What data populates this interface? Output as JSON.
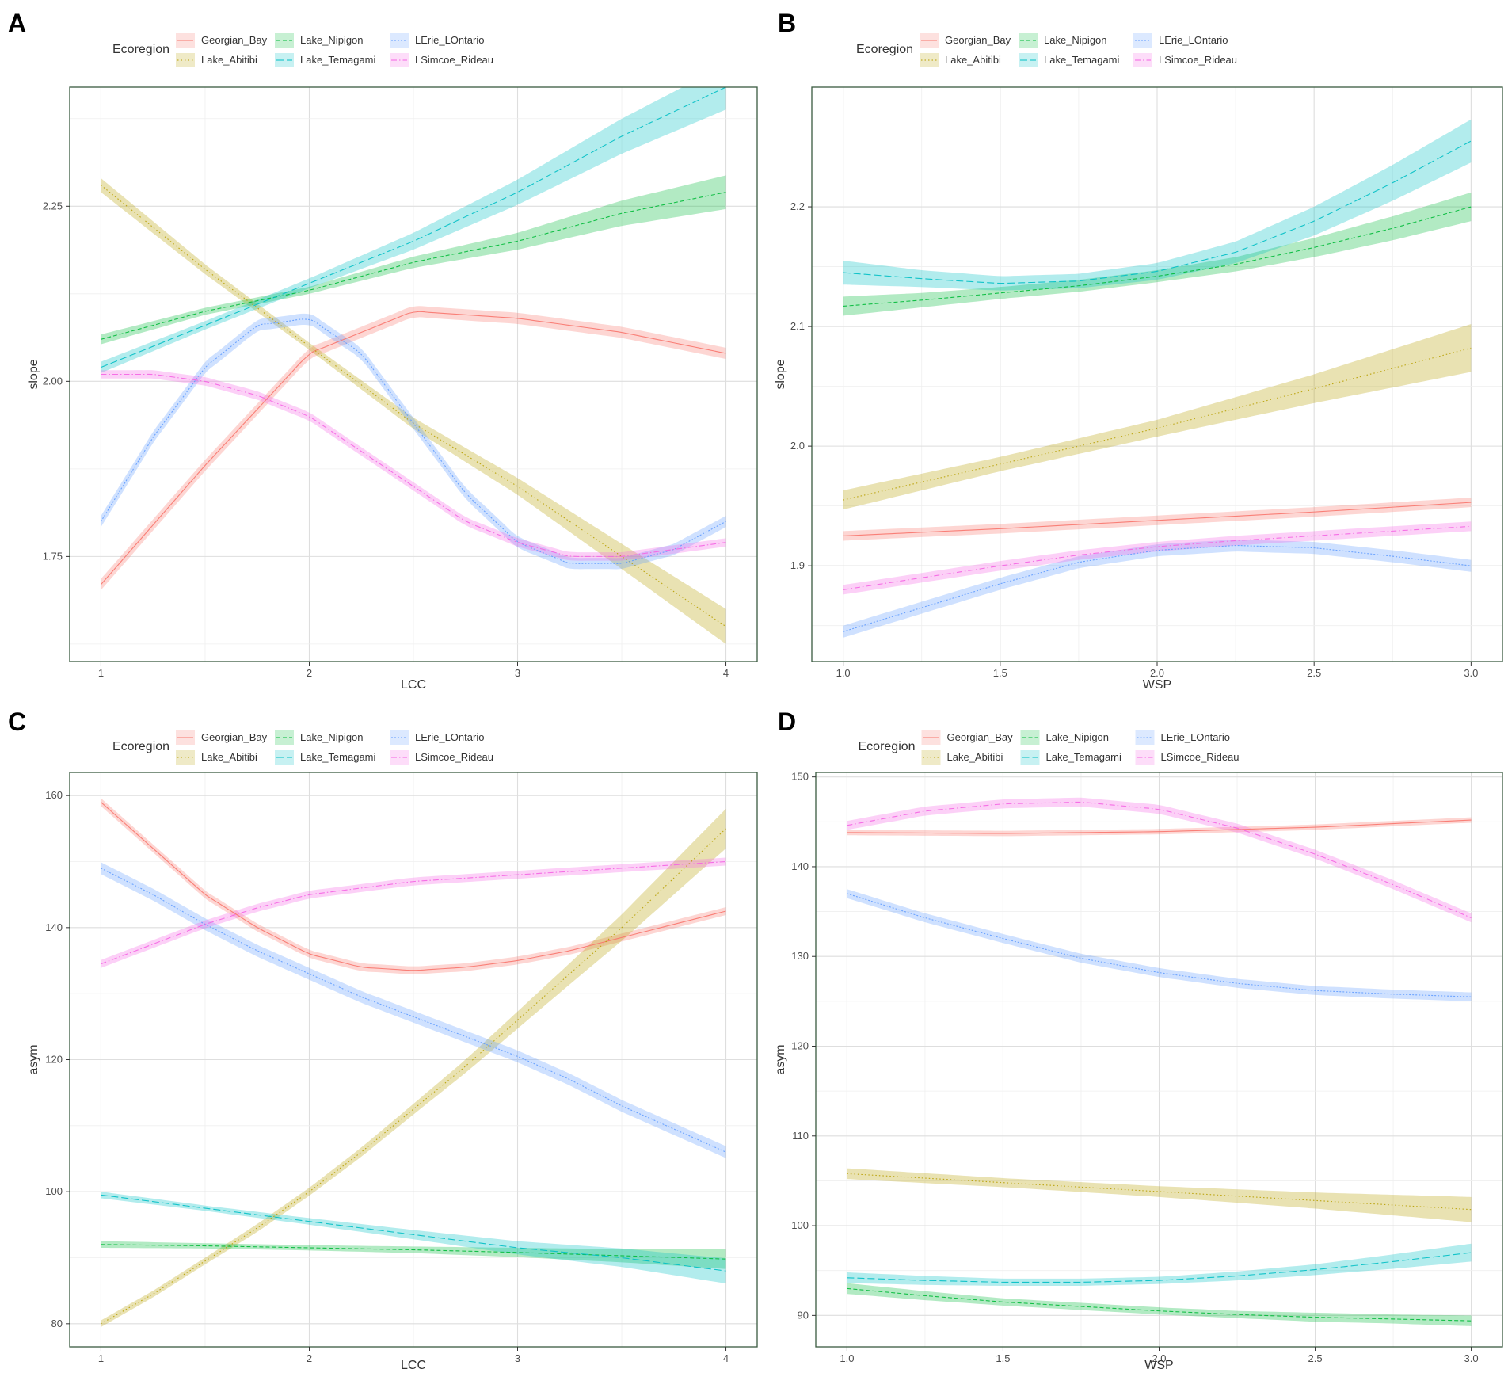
{
  "figure_caption": "",
  "colors": {
    "Georgian_Bay": "#F8766D",
    "Lake_Abitibi": "#B79F00",
    "Lake_Nipigon": "#00BA38",
    "Lake_Temagami": "#00BFC4",
    "LErie_LOntario": "#619CFF",
    "LSimcoe_Rideau": "#F564E3",
    "panel_border": "#3a5a40",
    "grid": "#e3e3e3"
  },
  "chart_data": [
    {
      "panel": "A",
      "type": "line",
      "xlabel": "LCC",
      "ylabel": "slope",
      "xlim": [
        0.85,
        4.15
      ],
      "ylim": [
        1.6,
        2.42
      ],
      "xticks": [
        1,
        2,
        3,
        4
      ],
      "xtick_labels": [
        "1",
        "2",
        "3",
        "4"
      ],
      "yticks": [
        1.75,
        2.0,
        2.25
      ],
      "ytick_labels": [
        "1.75",
        "2.00",
        "2.25"
      ],
      "legend_title": "Ecoregion",
      "legend_position": "top",
      "series": [
        {
          "name": "Georgian_Bay",
          "x": [
            1,
            1.5,
            2,
            2.5,
            3,
            3.5,
            4
          ],
          "y": [
            1.71,
            1.88,
            2.04,
            2.1,
            2.09,
            2.07,
            2.04
          ],
          "ribbon": 0.008
        },
        {
          "name": "Lake_Abitibi",
          "x": [
            1,
            1.5,
            2,
            2.5,
            3,
            3.5,
            4
          ],
          "y": [
            2.28,
            2.16,
            2.05,
            1.94,
            1.85,
            1.75,
            1.65
          ],
          "ribbon": [
            0.01,
            0.007,
            0.005,
            0.008,
            0.012,
            0.018,
            0.025
          ]
        },
        {
          "name": "Lake_Nipigon",
          "x": [
            1,
            1.5,
            2,
            2.5,
            3,
            3.5,
            4
          ],
          "y": [
            2.06,
            2.1,
            2.13,
            2.17,
            2.2,
            2.24,
            2.27
          ],
          "ribbon": [
            0.007,
            0.005,
            0.005,
            0.008,
            0.012,
            0.018,
            0.024
          ]
        },
        {
          "name": "Lake_Temagami",
          "x": [
            1,
            1.5,
            2,
            2.5,
            3,
            3.5,
            4
          ],
          "y": [
            2.02,
            2.08,
            2.14,
            2.2,
            2.27,
            2.35,
            2.42
          ],
          "ribbon": [
            0.008,
            0.006,
            0.007,
            0.012,
            0.018,
            0.025,
            0.032
          ]
        },
        {
          "name": "LErie_LOntario",
          "x": [
            1,
            1.25,
            1.5,
            1.75,
            2,
            2.25,
            2.5,
            2.75,
            3,
            3.25,
            3.5,
            3.75,
            4
          ],
          "y": [
            1.8,
            1.92,
            2.02,
            2.08,
            2.09,
            2.04,
            1.94,
            1.84,
            1.77,
            1.74,
            1.74,
            1.76,
            1.8
          ],
          "ribbon": 0.008
        },
        {
          "name": "LSimcoe_Rideau",
          "x": [
            1,
            1.25,
            1.5,
            1.75,
            2,
            2.25,
            2.5,
            2.75,
            3,
            3.25,
            3.5,
            3.75,
            4
          ],
          "y": [
            2.01,
            2.01,
            2.0,
            1.98,
            1.95,
            1.9,
            1.85,
            1.8,
            1.77,
            1.75,
            1.75,
            1.76,
            1.77
          ],
          "ribbon": 0.006
        }
      ]
    },
    {
      "panel": "B",
      "type": "line",
      "xlabel": "WSP",
      "ylabel": "slope",
      "xlim": [
        0.9,
        3.1
      ],
      "ylim": [
        1.82,
        2.3
      ],
      "xticks": [
        1.0,
        1.5,
        2.0,
        2.5,
        3.0
      ],
      "xtick_labels": [
        "1.0",
        "1.5",
        "2.0",
        "2.5",
        "3.0"
      ],
      "yticks": [
        1.9,
        2.0,
        2.1,
        2.2
      ],
      "ytick_labels": [
        "1.9",
        "2.0",
        "2.1",
        "2.2"
      ],
      "legend_title": "Ecoregion",
      "legend_position": "top",
      "series": [
        {
          "name": "Georgian_Bay",
          "x": [
            1.0,
            1.5,
            2.0,
            2.5,
            3.0
          ],
          "y": [
            1.925,
            1.931,
            1.938,
            1.945,
            1.953
          ],
          "ribbon": 0.004
        },
        {
          "name": "Lake_Abitibi",
          "x": [
            1.0,
            1.5,
            2.0,
            2.5,
            3.0
          ],
          "y": [
            1.955,
            1.985,
            2.015,
            2.048,
            2.082
          ],
          "ribbon": [
            0.008,
            0.006,
            0.007,
            0.012,
            0.02
          ]
        },
        {
          "name": "Lake_Nipigon",
          "x": [
            1.0,
            1.25,
            1.5,
            1.75,
            2.0,
            2.25,
            2.5,
            2.75,
            3.0
          ],
          "y": [
            2.117,
            2.122,
            2.128,
            2.134,
            2.142,
            2.152,
            2.166,
            2.182,
            2.2
          ],
          "ribbon": [
            0.008,
            0.006,
            0.005,
            0.005,
            0.005,
            0.006,
            0.008,
            0.01,
            0.012
          ]
        },
        {
          "name": "Lake_Temagami",
          "x": [
            1.0,
            1.25,
            1.5,
            1.75,
            2.0,
            2.25,
            2.5,
            2.75,
            3.0
          ],
          "y": [
            2.145,
            2.14,
            2.136,
            2.138,
            2.146,
            2.162,
            2.188,
            2.22,
            2.255
          ],
          "ribbon": [
            0.01,
            0.007,
            0.006,
            0.006,
            0.007,
            0.009,
            0.012,
            0.015,
            0.018
          ]
        },
        {
          "name": "LErie_LOntario",
          "x": [
            1.0,
            1.25,
            1.5,
            1.75,
            2.0,
            2.25,
            2.5,
            2.75,
            3.0
          ],
          "y": [
            1.845,
            1.865,
            1.885,
            1.903,
            1.913,
            1.917,
            1.915,
            1.908,
            1.9
          ],
          "ribbon": 0.005
        },
        {
          "name": "LSimcoe_Rideau",
          "x": [
            1.0,
            1.25,
            1.5,
            1.75,
            2.0,
            2.25,
            2.5,
            2.75,
            3.0
          ],
          "y": [
            1.88,
            1.89,
            1.9,
            1.909,
            1.916,
            1.921,
            1.925,
            1.929,
            1.933
          ],
          "ribbon": 0.004
        }
      ]
    },
    {
      "panel": "C",
      "type": "line",
      "xlabel": "LCC",
      "ylabel": "asym",
      "xlim": [
        0.85,
        4.15
      ],
      "ylim": [
        76.5,
        163.5
      ],
      "xticks": [
        1,
        2,
        3,
        4
      ],
      "xtick_labels": [
        "1",
        "2",
        "3",
        "4"
      ],
      "yticks": [
        80,
        100,
        120,
        140,
        160
      ],
      "ytick_labels": [
        "80",
        "100",
        "120",
        "140",
        "160"
      ],
      "legend_title": "Ecoregion",
      "legend_position": "top",
      "series": [
        {
          "name": "Georgian_Bay",
          "x": [
            1,
            1.25,
            1.5,
            1.75,
            2,
            2.25,
            2.5,
            2.75,
            3,
            3.25,
            3.5,
            3.75,
            4
          ],
          "y": [
            159,
            152,
            145,
            140,
            136,
            134,
            133.5,
            134,
            135,
            136.5,
            138.5,
            140.5,
            142.5
          ],
          "ribbon": 0.6
        },
        {
          "name": "Lake_Abitibi",
          "x": [
            1,
            1.25,
            1.5,
            1.75,
            2,
            2.25,
            2.5,
            2.75,
            3,
            3.25,
            3.5,
            3.75,
            4
          ],
          "y": [
            80,
            84.5,
            89.5,
            94.5,
            100,
            106,
            112.5,
            119,
            126,
            133,
            140,
            147.5,
            155
          ],
          "ribbon": [
            0.5,
            0.5,
            0.5,
            0.6,
            0.6,
            0.7,
            0.8,
            1.0,
            1.3,
            1.6,
            2.0,
            2.5,
            3.0
          ]
        },
        {
          "name": "Lake_Nipigon",
          "x": [
            1,
            1.5,
            2,
            2.5,
            3,
            3.5,
            4
          ],
          "y": [
            92,
            91.8,
            91.5,
            91.2,
            90.8,
            90.3,
            89.8
          ],
          "ribbon": [
            0.5,
            0.4,
            0.4,
            0.5,
            0.7,
            1.0,
            1.5
          ]
        },
        {
          "name": "Lake_Temagami",
          "x": [
            1,
            1.5,
            2,
            2.5,
            3,
            3.5,
            4
          ],
          "y": [
            99.5,
            97.5,
            95.5,
            93.5,
            91.5,
            90,
            88
          ],
          "ribbon": [
            0.5,
            0.4,
            0.5,
            0.7,
            1.0,
            1.4,
            1.9
          ]
        },
        {
          "name": "LErie_LOntario",
          "x": [
            1,
            1.25,
            1.5,
            1.75,
            2,
            2.25,
            2.5,
            2.75,
            3,
            3.25,
            3.5,
            3.75,
            4
          ],
          "y": [
            149,
            145,
            140.5,
            136.5,
            133,
            129.5,
            126.5,
            123.5,
            120.5,
            117,
            113,
            109.5,
            106
          ],
          "ribbon": 0.9
        },
        {
          "name": "LSimcoe_Rideau",
          "x": [
            1,
            1.25,
            1.5,
            1.75,
            2,
            2.25,
            2.5,
            2.75,
            3,
            3.25,
            3.5,
            3.75,
            4
          ],
          "y": [
            134.5,
            137.5,
            140.5,
            143,
            145,
            146,
            147,
            147.5,
            148,
            148.5,
            149,
            149.5,
            150
          ],
          "ribbon": 0.6
        }
      ]
    },
    {
      "panel": "D",
      "type": "line",
      "xlabel": "WSP",
      "ylabel": "asym",
      "xlim": [
        0.9,
        3.1
      ],
      "ylim": [
        86.5,
        150.5
      ],
      "xticks": [
        1.0,
        1.5,
        2.0,
        2.5,
        3.0
      ],
      "xtick_labels": [
        "1.0",
        "1.5",
        "2.0",
        "2.5",
        "3.0"
      ],
      "yticks": [
        90,
        100,
        110,
        120,
        130,
        140,
        150
      ],
      "ytick_labels": [
        "90",
        "100",
        "110",
        "120",
        "130",
        "140",
        "150"
      ],
      "legend_title": "Ecoregion",
      "legend_position": "top",
      "series": [
        {
          "name": "Georgian_Bay",
          "x": [
            1.0,
            1.5,
            2.0,
            2.5,
            3.0
          ],
          "y": [
            143.8,
            143.7,
            143.9,
            144.4,
            145.2
          ],
          "ribbon": 0.3
        },
        {
          "name": "Lake_Abitibi",
          "x": [
            1.0,
            1.5,
            2.0,
            2.5,
            3.0
          ],
          "y": [
            105.8,
            104.8,
            103.8,
            102.8,
            101.8
          ],
          "ribbon": [
            0.6,
            0.5,
            0.6,
            0.9,
            1.4
          ]
        },
        {
          "name": "Lake_Nipigon",
          "x": [
            1.0,
            1.25,
            1.5,
            1.75,
            2.0,
            2.25,
            2.5,
            2.75,
            3.0
          ],
          "y": [
            93.0,
            92.2,
            91.5,
            91.0,
            90.5,
            90.1,
            89.8,
            89.6,
            89.4
          ],
          "ribbon": [
            0.6,
            0.5,
            0.4,
            0.4,
            0.4,
            0.4,
            0.5,
            0.5,
            0.6
          ]
        },
        {
          "name": "Lake_Temagami",
          "x": [
            1.0,
            1.25,
            1.5,
            1.75,
            2.0,
            2.25,
            2.5,
            2.75,
            3.0
          ],
          "y": [
            94.2,
            93.9,
            93.7,
            93.7,
            93.9,
            94.4,
            95.1,
            96.0,
            97.0
          ],
          "ribbon": [
            0.6,
            0.5,
            0.4,
            0.4,
            0.4,
            0.5,
            0.6,
            0.8,
            1.0
          ]
        },
        {
          "name": "LErie_LOntario",
          "x": [
            1.0,
            1.25,
            1.5,
            1.75,
            2.0,
            2.25,
            2.5,
            2.75,
            3.0
          ],
          "y": [
            137.0,
            134.3,
            132.0,
            129.8,
            128.2,
            127.0,
            126.2,
            125.8,
            125.5
          ],
          "ribbon": 0.5
        },
        {
          "name": "LSimcoe_Rideau",
          "x": [
            1.0,
            1.25,
            1.5,
            1.75,
            2.0,
            2.25,
            2.5,
            2.75,
            3.0
          ],
          "y": [
            144.6,
            146.2,
            147.0,
            147.2,
            146.4,
            144.3,
            141.4,
            138.0,
            134.3
          ],
          "ribbon": 0.5
        }
      ]
    }
  ]
}
